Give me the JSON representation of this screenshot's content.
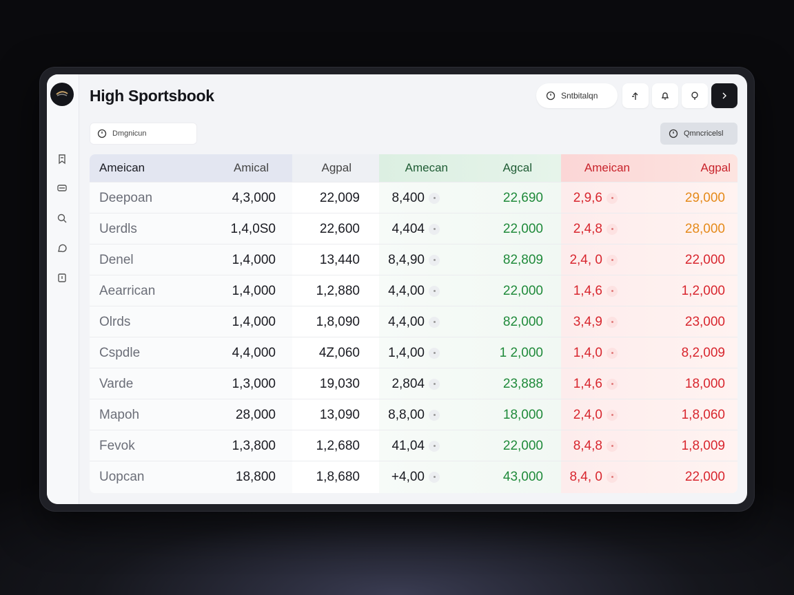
{
  "app": {
    "title": "High Sportsbook",
    "header_pill": "Sntbitalqn",
    "search_value": "Dmgnicun",
    "right_button": "Qmncricelsl"
  },
  "colors": {
    "green": "#1f8a3a",
    "red": "#d8262e",
    "orange": "#e58a1a",
    "dark": "#17181d"
  },
  "table": {
    "headers": [
      "Ameican",
      "Amical",
      "Agpal",
      "Amecan",
      "Agcal",
      "Ameican",
      "Agpal"
    ],
    "rows": [
      {
        "name": "Deepoan",
        "c1": "4,3,000",
        "c2": "22,009",
        "c3": "8,400",
        "c4": "22,690",
        "c5": "2,9,6",
        "c6": "29,000"
      },
      {
        "name": "Uerdls",
        "c1": "1,4,0S0",
        "c2": "22,600",
        "c3": "4,404",
        "c4": "22,000",
        "c5": "2,4,8",
        "c6": "28,000"
      },
      {
        "name": "Denel",
        "c1": "1,4,000",
        "c2": "13,440",
        "c3": "8,4,90",
        "c4": "82,809",
        "c5": "2,4, 0",
        "c6": "22,000"
      },
      {
        "name": "Aearrican",
        "c1": "1,4,000",
        "c2": "1,2,880",
        "c3": "4,4,00",
        "c4": "22,000",
        "c5": "1,4,6",
        "c6": "1,2,000"
      },
      {
        "name": "Olrds",
        "c1": "1,4,000",
        "c2": "1,8,090",
        "c3": "4,4,00",
        "c4": "82,000",
        "c5": "3,4,9",
        "c6": "23,000"
      },
      {
        "name": "Cspdle",
        "c1": "4,4,000",
        "c2": "4Z,060",
        "c3": "1,4,00",
        "c4": "1 2,000",
        "c5": "1,4,0",
        "c6": "8,2,009"
      },
      {
        "name": "Varde",
        "c1": "1,3,000",
        "c2": "19,030",
        "c3": "2,804",
        "c4": "23,888",
        "c5": "1,4,6",
        "c6": "18,000"
      },
      {
        "name": "Mapoh",
        "c1": "28,000",
        "c2": "13,090",
        "c3": "8,8,00",
        "c4": "18,000",
        "c5": "2,4,0",
        "c6": "1,8,060"
      },
      {
        "name": "Fevok",
        "c1": "1,3,800",
        "c2": "1,2,680",
        "c3": "41,04",
        "c4": "22,000",
        "c5": "8,4,8",
        "c6": "1,8,009"
      },
      {
        "name": "Uopcan",
        "c1": "18,800",
        "c2": "1,8,680",
        "c3": "+4,00",
        "c4": "43,000",
        "c5": "8,4, 0",
        "c6": "22,000"
      }
    ]
  }
}
